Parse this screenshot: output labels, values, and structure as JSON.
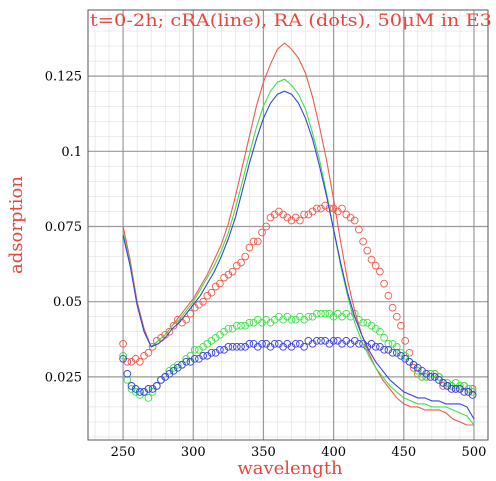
{
  "chart_data": {
    "type": "line",
    "title": "t=0-2h; cRA(line), RA (dots), 50μM in E3",
    "xlabel": "wavelength",
    "ylabel": "adsorption",
    "xlim": [
      225,
      510
    ],
    "ylim": [
      0.004,
      0.147
    ],
    "x_ticks": [
      250,
      300,
      350,
      400,
      450,
      500
    ],
    "y_ticks": [
      0.025,
      0.05,
      0.075,
      0.1,
      0.125
    ],
    "y_tick_labels": [
      "0.025",
      "0.05",
      "0.075",
      "0.1",
      "0.125"
    ],
    "grid": true,
    "colors": {
      "red": "#ef5a4a",
      "green": "#3fe04a",
      "blue": "#3a40e0"
    },
    "series": [
      {
        "style": "line",
        "color": "#ef5a4a",
        "x": [
          250,
          255,
          260,
          265,
          270,
          275,
          280,
          285,
          290,
          295,
          300,
          305,
          310,
          315,
          320,
          325,
          330,
          335,
          340,
          345,
          350,
          355,
          360,
          365,
          370,
          375,
          380,
          385,
          390,
          395,
          400,
          405,
          410,
          415,
          420,
          425,
          430,
          435,
          440,
          445,
          450,
          455,
          460,
          465,
          470,
          475,
          480,
          485,
          490,
          495,
          500
        ],
        "y": [
          0.075,
          0.064,
          0.05,
          0.041,
          0.035,
          0.037,
          0.039,
          0.042,
          0.045,
          0.048,
          0.051,
          0.055,
          0.059,
          0.064,
          0.069,
          0.076,
          0.085,
          0.095,
          0.105,
          0.115,
          0.123,
          0.129,
          0.134,
          0.136,
          0.134,
          0.131,
          0.126,
          0.118,
          0.108,
          0.097,
          0.084,
          0.07,
          0.057,
          0.047,
          0.039,
          0.033,
          0.028,
          0.024,
          0.021,
          0.018,
          0.016,
          0.015,
          0.015,
          0.014,
          0.014,
          0.014,
          0.013,
          0.011,
          0.01,
          0.009,
          0.009
        ]
      },
      {
        "style": "line",
        "color": "#3fe04a",
        "x": [
          250,
          255,
          260,
          265,
          270,
          275,
          280,
          285,
          290,
          295,
          300,
          305,
          310,
          315,
          320,
          325,
          330,
          335,
          340,
          345,
          350,
          355,
          360,
          365,
          370,
          375,
          380,
          385,
          390,
          395,
          400,
          405,
          410,
          415,
          420,
          425,
          430,
          435,
          440,
          445,
          450,
          455,
          460,
          465,
          470,
          475,
          480,
          485,
          490,
          495,
          500
        ],
        "y": [
          0.073,
          0.063,
          0.049,
          0.04,
          0.035,
          0.037,
          0.039,
          0.042,
          0.044,
          0.047,
          0.05,
          0.054,
          0.058,
          0.062,
          0.067,
          0.073,
          0.081,
          0.09,
          0.099,
          0.108,
          0.115,
          0.12,
          0.123,
          0.124,
          0.122,
          0.119,
          0.114,
          0.106,
          0.097,
          0.086,
          0.074,
          0.062,
          0.052,
          0.043,
          0.037,
          0.032,
          0.028,
          0.025,
          0.022,
          0.02,
          0.018,
          0.017,
          0.016,
          0.016,
          0.015,
          0.015,
          0.015,
          0.014,
          0.013,
          0.012,
          0.009
        ]
      },
      {
        "style": "line",
        "color": "#3a40e0",
        "x": [
          250,
          255,
          260,
          265,
          270,
          275,
          280,
          285,
          290,
          295,
          300,
          305,
          310,
          315,
          320,
          325,
          330,
          335,
          340,
          345,
          350,
          355,
          360,
          365,
          370,
          375,
          380,
          385,
          390,
          395,
          400,
          405,
          410,
          415,
          420,
          425,
          430,
          435,
          440,
          445,
          450,
          455,
          460,
          465,
          470,
          475,
          480,
          485,
          490,
          495,
          500
        ],
        "y": [
          0.072,
          0.062,
          0.049,
          0.04,
          0.035,
          0.036,
          0.038,
          0.041,
          0.043,
          0.046,
          0.049,
          0.052,
          0.056,
          0.06,
          0.065,
          0.071,
          0.078,
          0.087,
          0.096,
          0.104,
          0.111,
          0.116,
          0.119,
          0.12,
          0.119,
          0.116,
          0.111,
          0.104,
          0.095,
          0.085,
          0.074,
          0.063,
          0.053,
          0.045,
          0.039,
          0.034,
          0.03,
          0.027,
          0.024,
          0.022,
          0.02,
          0.019,
          0.018,
          0.018,
          0.017,
          0.017,
          0.016,
          0.016,
          0.016,
          0.015,
          0.011
        ]
      },
      {
        "style": "dots",
        "color": "#ef5a4a",
        "x": [
          250,
          253,
          256,
          259,
          262,
          265,
          268,
          271,
          274,
          277,
          280,
          283,
          286,
          289,
          292,
          295,
          298,
          301,
          304,
          307,
          310,
          313,
          316,
          319,
          322,
          325,
          328,
          331,
          334,
          337,
          340,
          343,
          346,
          349,
          352,
          355,
          358,
          361,
          364,
          367,
          370,
          373,
          376,
          379,
          382,
          385,
          388,
          391,
          394,
          397,
          400,
          403,
          406,
          409,
          412,
          415,
          418,
          421,
          424,
          427,
          430,
          433,
          436,
          439,
          442,
          445,
          448,
          451,
          454,
          457,
          460,
          463,
          466,
          469,
          472,
          475,
          478,
          481,
          484,
          487,
          490,
          493,
          496,
          499
        ],
        "y": [
          0.036,
          0.03,
          0.03,
          0.031,
          0.03,
          0.032,
          0.033,
          0.035,
          0.037,
          0.038,
          0.039,
          0.04,
          0.042,
          0.044,
          0.043,
          0.044,
          0.046,
          0.048,
          0.049,
          0.05,
          0.052,
          0.053,
          0.055,
          0.056,
          0.058,
          0.059,
          0.06,
          0.062,
          0.063,
          0.065,
          0.068,
          0.07,
          0.07,
          0.073,
          0.075,
          0.078,
          0.079,
          0.08,
          0.079,
          0.078,
          0.077,
          0.078,
          0.077,
          0.079,
          0.079,
          0.08,
          0.081,
          0.081,
          0.082,
          0.081,
          0.081,
          0.08,
          0.081,
          0.079,
          0.078,
          0.077,
          0.074,
          0.07,
          0.067,
          0.064,
          0.062,
          0.06,
          0.056,
          0.052,
          0.048,
          0.045,
          0.042,
          0.037,
          0.033,
          0.028,
          0.026,
          0.025,
          0.025,
          0.026,
          0.026,
          0.025,
          0.022,
          0.022,
          0.022,
          0.021,
          0.021,
          0.022,
          0.02,
          0.021
        ]
      },
      {
        "style": "dots",
        "color": "#3fe04a",
        "x": [
          250,
          253,
          256,
          259,
          262,
          265,
          268,
          271,
          274,
          277,
          280,
          283,
          286,
          289,
          292,
          295,
          298,
          301,
          304,
          307,
          310,
          313,
          316,
          319,
          322,
          325,
          328,
          331,
          334,
          337,
          340,
          343,
          346,
          349,
          352,
          355,
          358,
          361,
          364,
          367,
          370,
          373,
          376,
          379,
          382,
          385,
          388,
          391,
          394,
          397,
          400,
          403,
          406,
          409,
          412,
          415,
          418,
          421,
          424,
          427,
          430,
          433,
          436,
          439,
          442,
          445,
          448,
          451,
          454,
          457,
          460,
          463,
          466,
          469,
          472,
          475,
          478,
          481,
          484,
          487,
          490,
          493,
          496,
          499
        ],
        "y": [
          0.032,
          0.024,
          0.021,
          0.02,
          0.019,
          0.02,
          0.018,
          0.02,
          0.022,
          0.024,
          0.025,
          0.027,
          0.028,
          0.029,
          0.029,
          0.031,
          0.032,
          0.034,
          0.034,
          0.035,
          0.036,
          0.037,
          0.038,
          0.039,
          0.04,
          0.041,
          0.041,
          0.042,
          0.042,
          0.042,
          0.043,
          0.043,
          0.044,
          0.043,
          0.044,
          0.043,
          0.044,
          0.045,
          0.044,
          0.045,
          0.044,
          0.044,
          0.045,
          0.044,
          0.045,
          0.045,
          0.046,
          0.046,
          0.046,
          0.046,
          0.045,
          0.046,
          0.045,
          0.046,
          0.045,
          0.046,
          0.044,
          0.043,
          0.043,
          0.042,
          0.041,
          0.04,
          0.038,
          0.036,
          0.036,
          0.035,
          0.033,
          0.032,
          0.03,
          0.029,
          0.027,
          0.025,
          0.025,
          0.026,
          0.026,
          0.025,
          0.023,
          0.023,
          0.022,
          0.023,
          0.022,
          0.022,
          0.021,
          0.02
        ]
      },
      {
        "style": "dots",
        "color": "#3a40e0",
        "x": [
          250,
          253,
          256,
          259,
          262,
          265,
          268,
          271,
          274,
          277,
          280,
          283,
          286,
          289,
          292,
          295,
          298,
          301,
          304,
          307,
          310,
          313,
          316,
          319,
          322,
          325,
          328,
          331,
          334,
          337,
          340,
          343,
          346,
          349,
          352,
          355,
          358,
          361,
          364,
          367,
          370,
          373,
          376,
          379,
          382,
          385,
          388,
          391,
          394,
          397,
          400,
          403,
          406,
          409,
          412,
          415,
          418,
          421,
          424,
          427,
          430,
          433,
          436,
          439,
          442,
          445,
          448,
          451,
          454,
          457,
          460,
          463,
          466,
          469,
          472,
          475,
          478,
          481,
          484,
          487,
          490,
          493,
          496,
          499
        ],
        "y": [
          0.031,
          0.026,
          0.022,
          0.021,
          0.02,
          0.02,
          0.021,
          0.021,
          0.022,
          0.024,
          0.025,
          0.026,
          0.027,
          0.028,
          0.029,
          0.03,
          0.03,
          0.031,
          0.031,
          0.032,
          0.032,
          0.033,
          0.033,
          0.034,
          0.034,
          0.035,
          0.035,
          0.035,
          0.035,
          0.035,
          0.036,
          0.036,
          0.035,
          0.036,
          0.036,
          0.035,
          0.036,
          0.036,
          0.035,
          0.036,
          0.035,
          0.036,
          0.036,
          0.035,
          0.037,
          0.036,
          0.037,
          0.037,
          0.037,
          0.036,
          0.037,
          0.037,
          0.036,
          0.037,
          0.036,
          0.037,
          0.036,
          0.036,
          0.035,
          0.036,
          0.035,
          0.035,
          0.034,
          0.034,
          0.033,
          0.033,
          0.032,
          0.031,
          0.03,
          0.029,
          0.028,
          0.027,
          0.026,
          0.025,
          0.025,
          0.024,
          0.023,
          0.022,
          0.021,
          0.021,
          0.021,
          0.02,
          0.02,
          0.019
        ]
      }
    ]
  }
}
